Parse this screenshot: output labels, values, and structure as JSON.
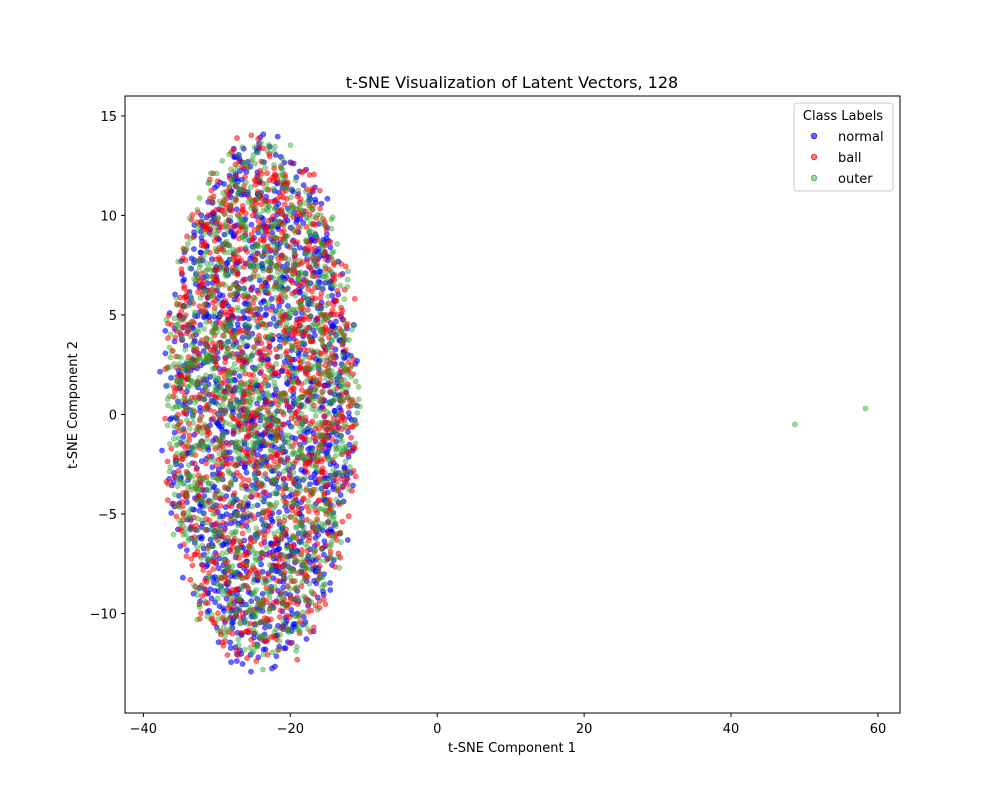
{
  "chart_data": {
    "type": "scatter",
    "title": "t-SNE Visualization of Latent Vectors, 128",
    "xlabel": "t-SNE Component 1",
    "ylabel": "t-SNE Component 2",
    "xlim": [
      -42.5,
      63
    ],
    "ylim": [
      -15,
      16
    ],
    "xticks": [
      -40,
      -20,
      0,
      20,
      40,
      60
    ],
    "yticks": [
      -10,
      -5,
      0,
      5,
      10,
      15
    ],
    "xtick_labels": [
      "−40",
      "−20",
      "0",
      "20",
      "40",
      "60"
    ],
    "ytick_labels": [
      "−10",
      "−5",
      "0",
      "5",
      "10",
      "15"
    ],
    "grid": false,
    "legend": {
      "title": "Class Labels",
      "placement": "top-right",
      "entries": [
        "normal",
        "ball",
        "outer"
      ]
    },
    "cluster": {
      "center": [
        -24,
        0.5
      ],
      "x_half_width": 14,
      "y_half_height": 14,
      "approx_points_per_series": 1500
    },
    "series": [
      {
        "name": "normal",
        "color": "#0000ff",
        "opacity": 0.6
      },
      {
        "name": "ball",
        "color": "#ff0000",
        "opacity": 0.55
      },
      {
        "name": "outer",
        "color": "#2ca02c",
        "opacity": 0.45,
        "outliers": [
          [
            48.7,
            -0.5
          ],
          [
            58.3,
            0.3
          ]
        ]
      }
    ]
  }
}
